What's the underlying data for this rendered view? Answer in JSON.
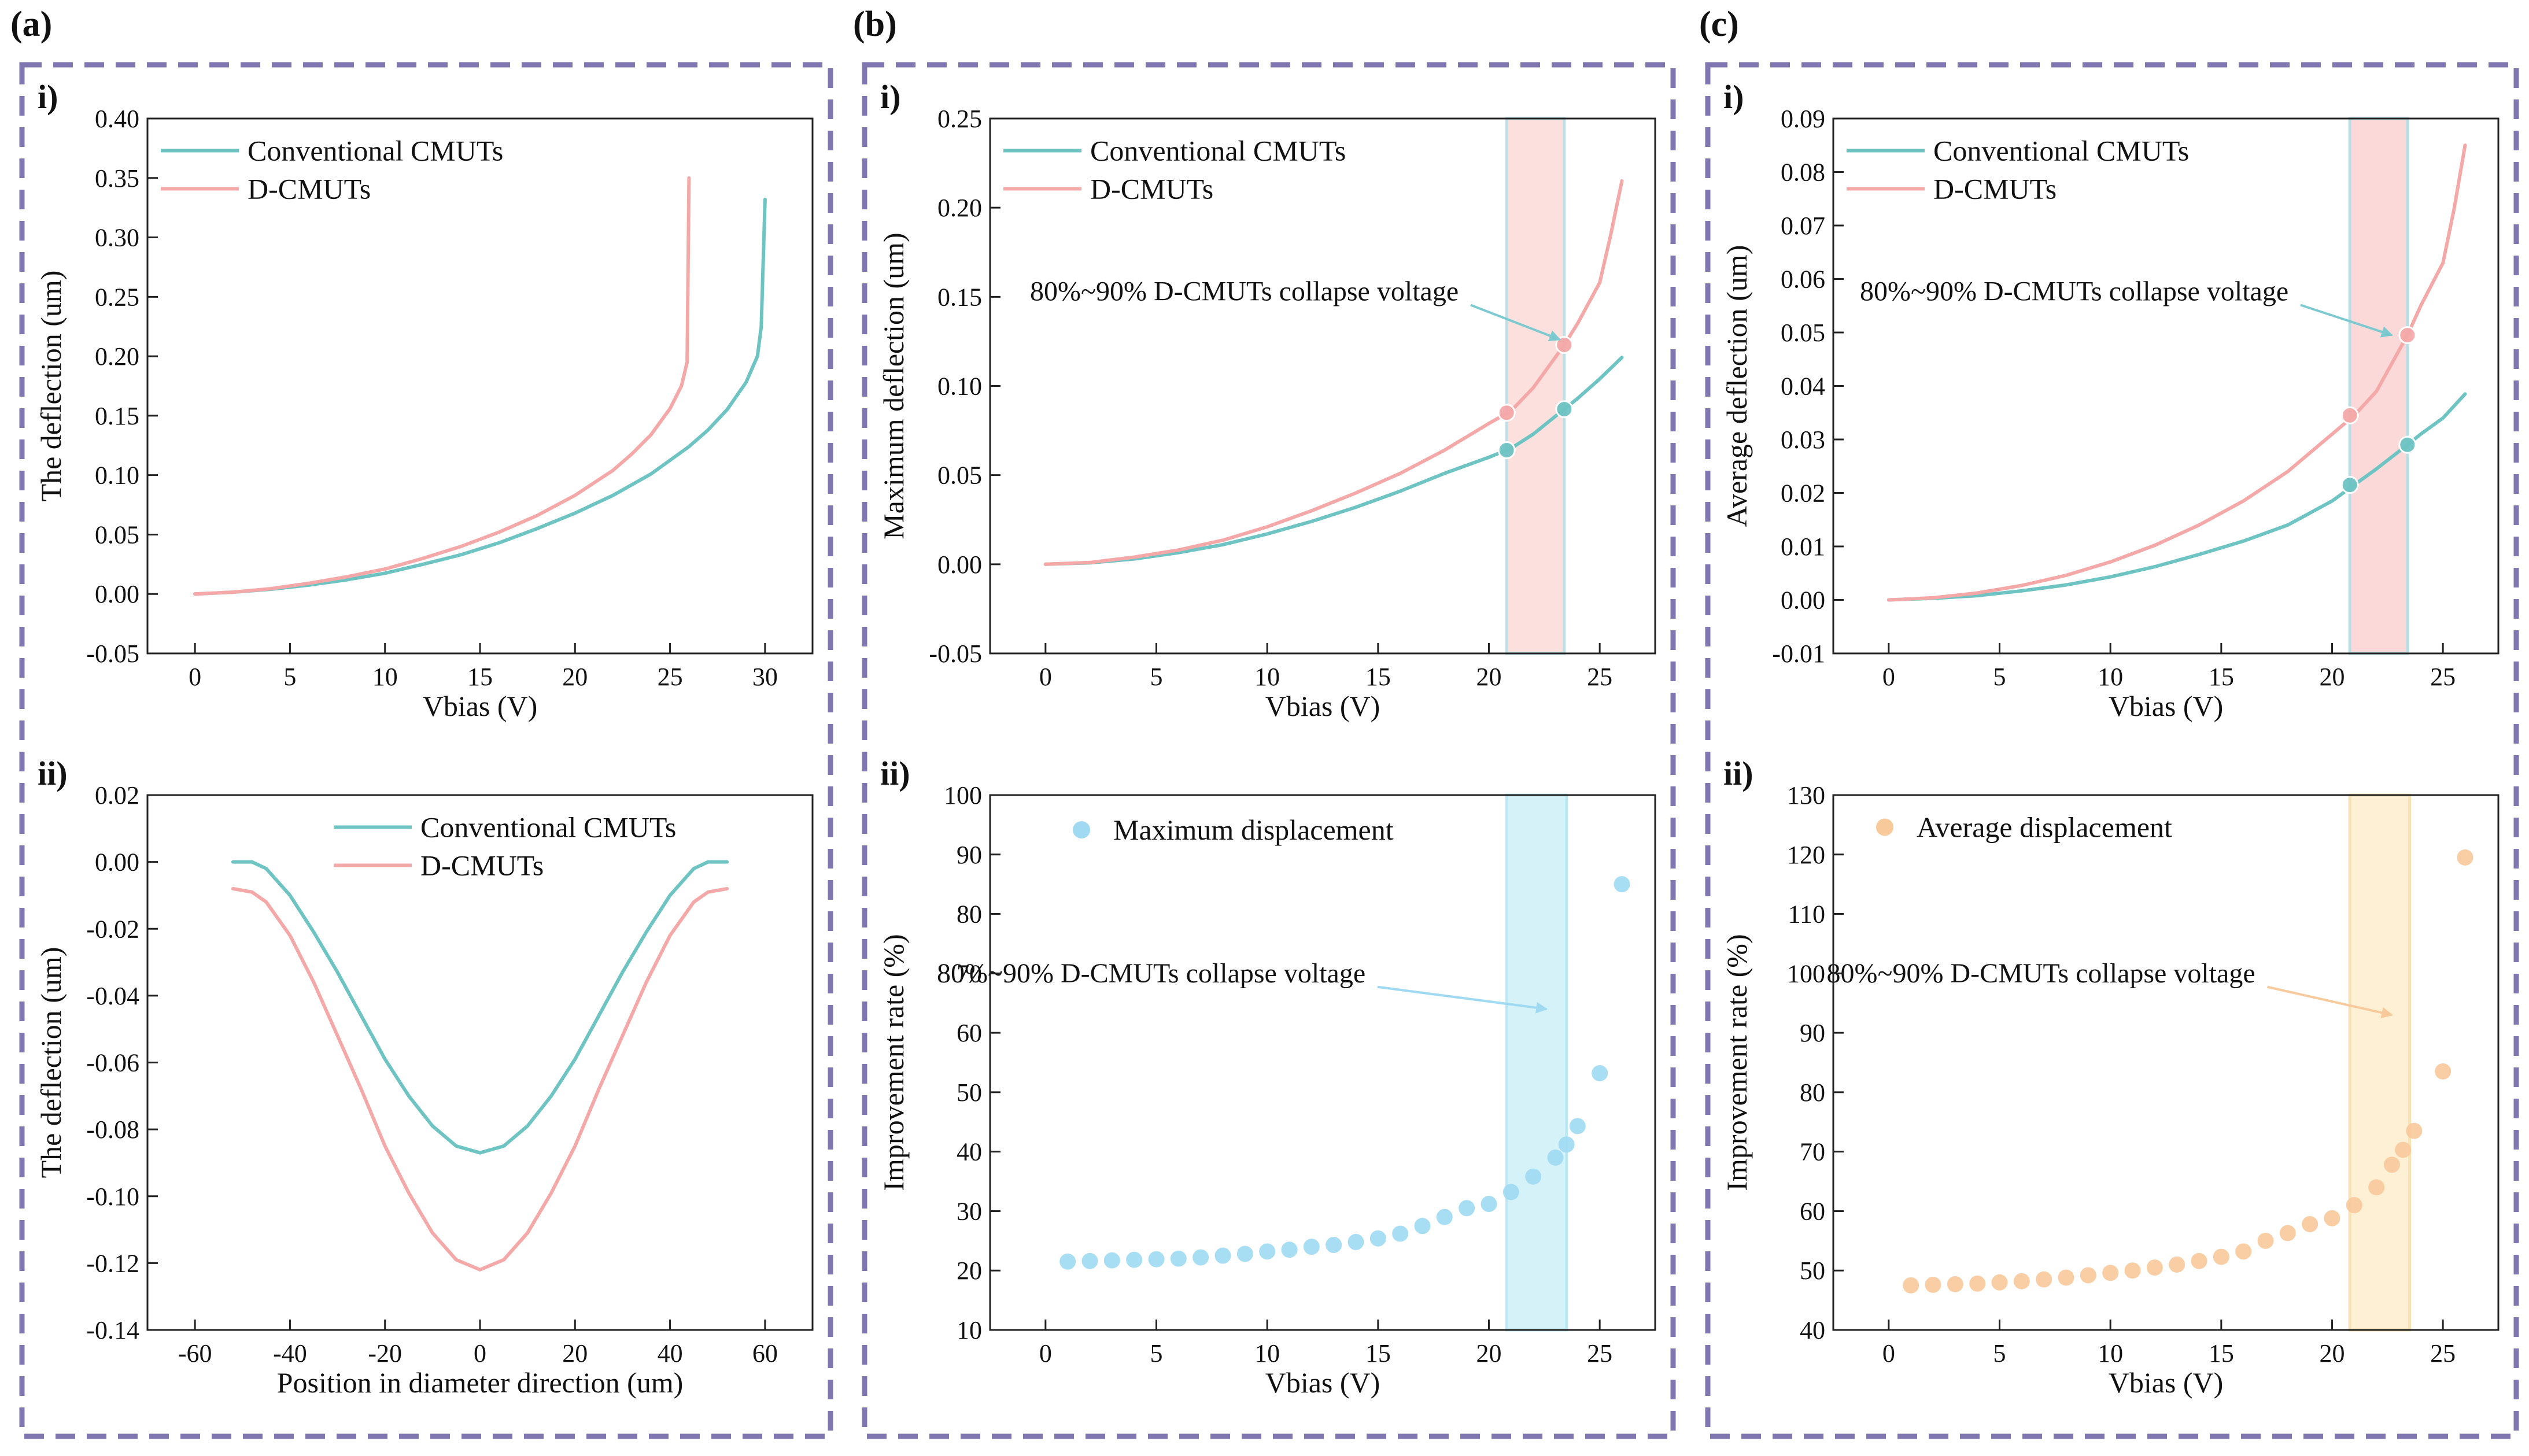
{
  "panels": {
    "a": {
      "label": "(a)"
    },
    "b": {
      "label": "(b)"
    },
    "c": {
      "label": "(c)"
    }
  },
  "colors": {
    "frame": "#8076b0",
    "conventional": "#6ec3c3",
    "dcmut": "#f4a9a8",
    "band_pink": "#fbe0dd",
    "band_blue": "#d6f2f9",
    "band_yellow": "#fdf0d4",
    "blue_marker": "#9fdaf2",
    "orange_marker": "#f8c99b"
  },
  "chart_data": [
    {
      "id": "a-i",
      "panel": "a",
      "sublabel": "i)",
      "type": "line",
      "xlabel": "Vbias (V)",
      "ylabel": "The deflection (um)",
      "xlim": [
        -2.5,
        32.5
      ],
      "ylim": [
        -0.05,
        0.4
      ],
      "xticks": [
        0,
        5,
        10,
        15,
        20,
        25,
        30
      ],
      "yticks": [
        -0.05,
        0.0,
        0.05,
        0.1,
        0.15,
        0.2,
        0.25,
        0.3,
        0.35,
        0.4
      ],
      "ytick_labels": [
        "-0.05",
        "0.00",
        "0.05",
        "0.10",
        "0.15",
        "0.20",
        "0.25",
        "0.30",
        "0.35",
        "0.40"
      ],
      "legend": {
        "position": "top-left",
        "items": [
          {
            "name": "Conventional CMUTs",
            "color": "#6ec3c3"
          },
          {
            "name": "D-CMUTs",
            "color": "#f4a9a8"
          }
        ]
      },
      "series": [
        {
          "name": "Conventional CMUTs",
          "color": "#6ec3c3",
          "x": [
            0,
            2,
            4,
            6,
            8,
            10,
            12,
            14,
            16,
            18,
            20,
            22,
            24,
            26,
            27,
            28,
            29,
            29.6,
            29.8,
            30
          ],
          "y": [
            0,
            0.0015,
            0.004,
            0.0075,
            0.012,
            0.0175,
            0.025,
            0.033,
            0.043,
            0.055,
            0.068,
            0.083,
            0.101,
            0.124,
            0.138,
            0.155,
            0.178,
            0.2,
            0.225,
            0.332
          ]
        },
        {
          "name": "D-CMUTs",
          "color": "#f4a9a8",
          "x": [
            0,
            2,
            4,
            6,
            8,
            10,
            12,
            14,
            16,
            18,
            20,
            22,
            23,
            24,
            25,
            25.6,
            25.9,
            26
          ],
          "y": [
            0,
            0.0015,
            0.0045,
            0.009,
            0.0145,
            0.021,
            0.03,
            0.04,
            0.052,
            0.066,
            0.083,
            0.104,
            0.118,
            0.134,
            0.156,
            0.175,
            0.195,
            0.35
          ]
        }
      ]
    },
    {
      "id": "a-ii",
      "panel": "a",
      "sublabel": "ii)",
      "type": "line",
      "xlabel": "Position in diameter direction (um)",
      "ylabel": "The deflection (um)",
      "xlim": [
        -70,
        70
      ],
      "ylim": [
        -0.14,
        0.02
      ],
      "xticks": [
        -60,
        -40,
        -20,
        0,
        20,
        40,
        60
      ],
      "yticks": [
        -0.14,
        -0.12,
        -0.1,
        -0.08,
        -0.06,
        -0.04,
        -0.02,
        0.0,
        0.02
      ],
      "ytick_labels": [
        "-0.14",
        "-0.12",
        "-0.10",
        "-0.08",
        "-0.06",
        "-0.04",
        "-0.02",
        "0.00",
        "0.02"
      ],
      "legend": {
        "position": "top-center",
        "items": [
          {
            "name": "Conventional CMUTs",
            "color": "#6ec3c3"
          },
          {
            "name": "D-CMUTs",
            "color": "#f4a9a8"
          }
        ]
      },
      "series": [
        {
          "name": "Conventional CMUTs",
          "color": "#6ec3c3",
          "x": [
            -52,
            -48,
            -45,
            -40,
            -35,
            -30,
            -25,
            -20,
            -15,
            -10,
            -5,
            0,
            5,
            10,
            15,
            20,
            25,
            30,
            35,
            40,
            45,
            48,
            52
          ],
          "y": [
            0,
            0,
            -0.002,
            -0.01,
            -0.021,
            -0.033,
            -0.046,
            -0.059,
            -0.07,
            -0.079,
            -0.085,
            -0.087,
            -0.085,
            -0.079,
            -0.07,
            -0.059,
            -0.046,
            -0.033,
            -0.021,
            -0.01,
            -0.002,
            0,
            0
          ]
        },
        {
          "name": "D-CMUTs",
          "color": "#f4a9a8",
          "x": [
            -52,
            -48,
            -45,
            -40,
            -35,
            -30,
            -25,
            -20,
            -15,
            -10,
            -5,
            0,
            5,
            10,
            15,
            20,
            25,
            30,
            35,
            40,
            45,
            48,
            52
          ],
          "y": [
            -0.008,
            -0.009,
            -0.012,
            -0.022,
            -0.036,
            -0.052,
            -0.068,
            -0.085,
            -0.099,
            -0.111,
            -0.119,
            -0.122,
            -0.119,
            -0.111,
            -0.099,
            -0.085,
            -0.068,
            -0.052,
            -0.036,
            -0.022,
            -0.012,
            -0.009,
            -0.008
          ]
        }
      ]
    },
    {
      "id": "b-i",
      "panel": "b",
      "sublabel": "i)",
      "type": "line",
      "xlabel": "Vbias (V)",
      "ylabel": "Maximum deflection (um)",
      "xlim": [
        -2.5,
        27.5
      ],
      "ylim": [
        -0.05,
        0.25
      ],
      "xticks": [
        0,
        5,
        10,
        15,
        20,
        25
      ],
      "yticks": [
        -0.05,
        0.0,
        0.05,
        0.1,
        0.15,
        0.2,
        0.25
      ],
      "ytick_labels": [
        "-0.05",
        "0.00",
        "0.05",
        "0.10",
        "0.15",
        "0.20",
        "0.25"
      ],
      "band": {
        "x": [
          20.8,
          23.4
        ],
        "fill": "#fbe0dd",
        "edge": "#bfe0e6"
      },
      "annotation": {
        "text": "80%~90% D-CMUTs collapse voltage",
        "arrow_to": [
          23.2,
          0.126
        ],
        "color": "#7cc9cf"
      },
      "legend": {
        "position": "top-left",
        "items": [
          {
            "name": "Conventional CMUTs",
            "color": "#6ec3c3"
          },
          {
            "name": "D-CMUTs",
            "color": "#f4a9a8"
          }
        ]
      },
      "series": [
        {
          "name": "Conventional CMUTs",
          "color": "#6ec3c3",
          "x": [
            0,
            2,
            4,
            6,
            8,
            10,
            12,
            14,
            16,
            18,
            20,
            21,
            22,
            23.4,
            24,
            25,
            26
          ],
          "y": [
            0,
            0.0008,
            0.003,
            0.0065,
            0.011,
            0.017,
            0.024,
            0.032,
            0.041,
            0.051,
            0.06,
            0.065,
            0.073,
            0.087,
            0.093,
            0.104,
            0.116
          ]
        },
        {
          "name": "D-CMUTs",
          "color": "#f4a9a8",
          "x": [
            0,
            2,
            4,
            6,
            8,
            10,
            12,
            14,
            16,
            18,
            20,
            21,
            22,
            23.4,
            24,
            25,
            25.5,
            26
          ],
          "y": [
            0,
            0.001,
            0.004,
            0.008,
            0.0135,
            0.021,
            0.03,
            0.04,
            0.051,
            0.064,
            0.079,
            0.086,
            0.099,
            0.123,
            0.135,
            0.158,
            0.185,
            0.215
          ]
        }
      ],
      "markers": [
        {
          "x": 20.8,
          "y": 0.085,
          "color": "#f4a9a8"
        },
        {
          "x": 23.4,
          "y": 0.123,
          "color": "#f4a9a8"
        },
        {
          "x": 20.8,
          "y": 0.064,
          "color": "#6ec3c3"
        },
        {
          "x": 23.4,
          "y": 0.087,
          "color": "#6ec3c3"
        }
      ]
    },
    {
      "id": "b-ii",
      "panel": "b",
      "sublabel": "ii)",
      "type": "scatter",
      "xlabel": "Vbias (V)",
      "ylabel": "Improvement rate (%)",
      "xlim": [
        -2.5,
        27.5
      ],
      "ylim": [
        10,
        100
      ],
      "xticks": [
        0,
        5,
        10,
        15,
        20,
        25
      ],
      "yticks": [
        10,
        20,
        30,
        40,
        50,
        60,
        70,
        80,
        90,
        100
      ],
      "ytick_labels": [
        "10",
        "20",
        "30",
        "40",
        "50",
        "60",
        "70",
        "80",
        "90",
        "100"
      ],
      "band": {
        "x": [
          20.8,
          23.5
        ],
        "fill": "#d6f2f9",
        "edge": "#bde9f4"
      },
      "annotation": {
        "text": "80%~90% D-CMUTs collapse voltage",
        "arrow_to": [
          22.6,
          64
        ],
        "color": "#9fdaf2"
      },
      "legend": {
        "position": "top-left",
        "items": [
          {
            "name": "Maximum displacement",
            "color": "#9fdaf2"
          }
        ]
      },
      "series": [
        {
          "name": "Maximum displacement",
          "color": "#9fdaf2",
          "x": [
            1,
            2,
            3,
            4,
            5,
            6,
            7,
            8,
            9,
            10,
            11,
            12,
            13,
            14,
            15,
            16,
            17,
            18,
            19,
            20,
            21,
            22,
            23,
            23.5,
            24,
            25,
            26
          ],
          "y": [
            21.5,
            21.6,
            21.7,
            21.8,
            21.9,
            22.0,
            22.2,
            22.5,
            22.8,
            23.2,
            23.5,
            24.0,
            24.3,
            24.8,
            25.4,
            26.2,
            27.5,
            29.0,
            30.5,
            31.2,
            33.2,
            35.8,
            39.0,
            41.2,
            44.3,
            53.2,
            85.0
          ]
        }
      ]
    },
    {
      "id": "c-i",
      "panel": "c",
      "sublabel": "i)",
      "type": "line",
      "xlabel": "Vbias (V)",
      "ylabel": "Average deflection (um)",
      "xlim": [
        -2.5,
        27.5
      ],
      "ylim": [
        -0.01,
        0.09
      ],
      "xticks": [
        0,
        5,
        10,
        15,
        20,
        25
      ],
      "yticks": [
        -0.01,
        0.0,
        0.01,
        0.02,
        0.03,
        0.04,
        0.05,
        0.06,
        0.07,
        0.08,
        0.09
      ],
      "ytick_labels": [
        "-0.01",
        "0.00",
        "0.01",
        "0.02",
        "0.03",
        "0.04",
        "0.05",
        "0.06",
        "0.07",
        "0.08",
        "0.09"
      ],
      "band": {
        "x": [
          20.8,
          23.4
        ],
        "fill": "#fbd9d9",
        "edge": "#b9dfe6"
      },
      "annotation": {
        "text": "80%~90% D-CMUTs collapse voltage",
        "arrow_to": [
          22.7,
          0.0495
        ],
        "color": "#7cc9cf"
      },
      "legend": {
        "position": "top-left",
        "items": [
          {
            "name": "Conventional CMUTs",
            "color": "#6ec3c3"
          },
          {
            "name": "D-CMUTs",
            "color": "#f4a9a8"
          }
        ]
      },
      "series": [
        {
          "name": "Conventional CMUTs",
          "color": "#6ec3c3",
          "x": [
            0,
            2,
            4,
            6,
            8,
            10,
            12,
            14,
            16,
            18,
            20,
            21,
            22,
            23.4,
            24,
            25,
            26
          ],
          "y": [
            0,
            0.0003,
            0.0008,
            0.0017,
            0.0028,
            0.0043,
            0.0062,
            0.0085,
            0.011,
            0.014,
            0.0185,
            0.0215,
            0.0245,
            0.029,
            0.031,
            0.034,
            0.0385
          ]
        },
        {
          "name": "D-CMUTs",
          "color": "#f4a9a8",
          "x": [
            0,
            2,
            4,
            6,
            8,
            10,
            12,
            14,
            16,
            18,
            20,
            21,
            22,
            23.4,
            24,
            25,
            25.5,
            26
          ],
          "y": [
            0,
            0.0004,
            0.0013,
            0.0027,
            0.0046,
            0.0071,
            0.0102,
            0.014,
            0.0185,
            0.024,
            0.031,
            0.0345,
            0.039,
            0.0495,
            0.055,
            0.063,
            0.073,
            0.085
          ]
        }
      ],
      "markers": [
        {
          "x": 20.8,
          "y": 0.0345,
          "color": "#f4a9a8"
        },
        {
          "x": 23.4,
          "y": 0.0495,
          "color": "#f4a9a8"
        },
        {
          "x": 20.8,
          "y": 0.0215,
          "color": "#6ec3c3"
        },
        {
          "x": 23.4,
          "y": 0.029,
          "color": "#6ec3c3"
        }
      ]
    },
    {
      "id": "c-ii",
      "panel": "c",
      "sublabel": "ii)",
      "type": "scatter",
      "xlabel": "Vbias (V)",
      "ylabel": "Improvement rate (%)",
      "xlim": [
        -2.5,
        27.5
      ],
      "ylim": [
        40,
        130
      ],
      "xticks": [
        0,
        5,
        10,
        15,
        20,
        25
      ],
      "yticks": [
        40,
        50,
        60,
        70,
        80,
        90,
        100,
        110,
        120,
        130
      ],
      "ytick_labels": [
        "40",
        "50",
        "60",
        "70",
        "80",
        "90",
        "100",
        "110",
        "120",
        "130"
      ],
      "band": {
        "x": [
          20.8,
          23.5
        ],
        "fill": "#fdf0d4",
        "edge": "#f7e2b4"
      },
      "annotation": {
        "text": "80%~90% D-CMUTs collapse voltage",
        "arrow_to": [
          22.7,
          93
        ],
        "color": "#f8c99b"
      },
      "legend": {
        "position": "top-left",
        "items": [
          {
            "name": "Average displacement",
            "color": "#f8c99b"
          }
        ]
      },
      "series": [
        {
          "name": "Average displacement",
          "color": "#f8c99b",
          "x": [
            1,
            2,
            3,
            4,
            5,
            6,
            7,
            8,
            9,
            10,
            11,
            12,
            13,
            14,
            15,
            16,
            17,
            18,
            19,
            20,
            21,
            22,
            22.7,
            23.2,
            23.7,
            25,
            26
          ],
          "y": [
            47.5,
            47.6,
            47.7,
            47.8,
            48.0,
            48.2,
            48.5,
            48.8,
            49.2,
            49.6,
            50.0,
            50.5,
            51.0,
            51.6,
            52.3,
            53.2,
            55.0,
            56.3,
            57.8,
            58.8,
            61.0,
            64.0,
            67.8,
            70.3,
            73.5,
            83.5,
            119.5
          ]
        }
      ]
    }
  ]
}
